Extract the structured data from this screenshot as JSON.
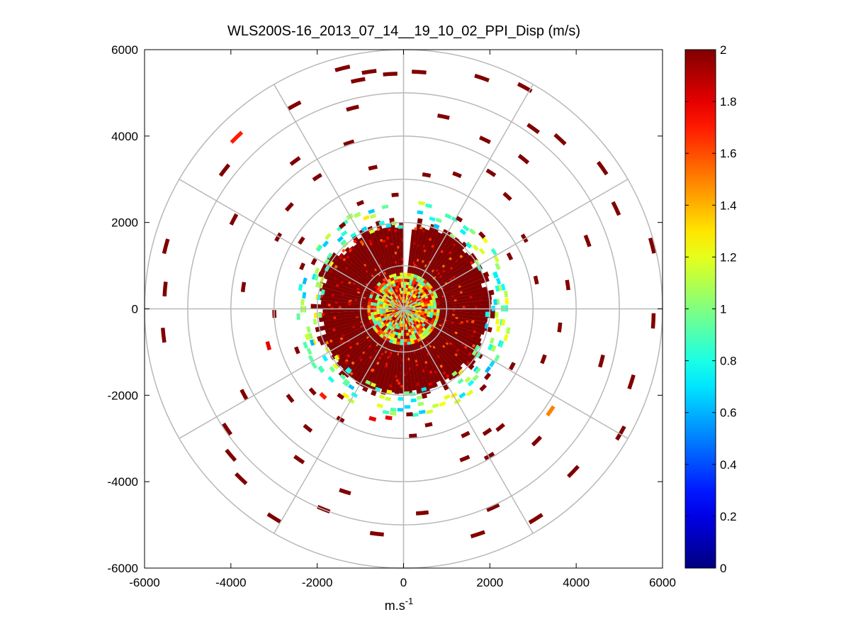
{
  "chart_data": {
    "type": "heatmap",
    "subtype": "polar-ppi",
    "title": "WLS200S-16_2013_07_14__19_10_02_PPI_Disp (m/s)",
    "xlabel": "m.s",
    "xlabel_sup": "-1",
    "ylabel": "",
    "xlim": [
      -6000,
      6000
    ],
    "ylim": [
      -6000,
      6000
    ],
    "x_ticks": [
      -6000,
      -4000,
      -2000,
      0,
      2000,
      4000,
      6000
    ],
    "y_ticks": [
      6000,
      4000,
      2000,
      0,
      -2000,
      -4000,
      -6000
    ],
    "x_tick_labels": [
      "-6000",
      "-4000",
      "-2000",
      "0",
      "2000",
      "4000",
      "6000"
    ],
    "y_tick_labels": [
      "6000",
      "4000",
      "2000",
      "0",
      "-2000",
      "-4000",
      "-6000"
    ],
    "polar_rings": [
      1000,
      2000,
      3000,
      4000,
      5000,
      6000
    ],
    "polar_spokes_deg": [
      0,
      30,
      60,
      90,
      120,
      150,
      180,
      210,
      240,
      270,
      300,
      330
    ],
    "grid": true,
    "colorbar": {
      "colormap": "jet",
      "min": 0,
      "max": 2,
      "ticks": [
        2,
        1.8,
        1.6,
        1.4,
        1.2,
        1,
        0.8,
        0.6,
        0.4,
        0.2,
        0
      ],
      "tick_labels": [
        "2",
        "1.8",
        "1.6",
        "1.4",
        "1.2",
        "1",
        "0.8",
        "0.6",
        "0.4",
        "0.2",
        "0"
      ]
    },
    "dense_core": {
      "radius_max": 2000,
      "value": 2,
      "blind_sector_deg": [
        -2,
        6
      ]
    },
    "mixed_inner_core": {
      "radius_max": 800,
      "value_range": [
        0.8,
        2
      ]
    },
    "edge_band": {
      "radius_range": [
        1850,
        2450
      ],
      "value_range": [
        0.6,
        1.3
      ]
    },
    "sparse_cells": [
      {
        "r": 5450,
        "deg": 2,
        "v": 2
      },
      {
        "r": 5400,
        "deg": -5,
        "v": 2
      },
      {
        "r": 5350,
        "deg": -13,
        "v": 2
      },
      {
        "r": 5600,
        "deg": 17,
        "v": 2
      },
      {
        "r": 5800,
        "deg": 27,
        "v": 2
      },
      {
        "r": 5100,
        "deg": 34,
        "v": 2
      },
      {
        "r": 5300,
        "deg": 41,
        "v": 2
      },
      {
        "r": 5600,
        "deg": 53,
        "v": 2
      },
      {
        "r": 5400,
        "deg": 63,
        "v": 2
      },
      {
        "r": 5900,
        "deg": 74,
        "v": 2
      },
      {
        "r": 5750,
        "deg": 91,
        "v": 2
      },
      {
        "r": 5500,
        "deg": 106,
        "v": 2
      },
      {
        "r": 5750,
        "deg": 118,
        "v": 2
      },
      {
        "r": 5400,
        "deg": 132,
        "v": 2
      },
      {
        "r": 5700,
        "deg": 146,
        "v": 2
      },
      {
        "r": 5450,
        "deg": 160,
        "v": 2
      },
      {
        "r": 5000,
        "deg": 154,
        "v": 2
      },
      {
        "r": 4700,
        "deg": 173,
        "v": 2
      },
      {
        "r": 5200,
        "deg": 185,
        "v": 2
      },
      {
        "r": 4950,
        "deg": 200,
        "v": 2
      },
      {
        "r": 5650,
        "deg": 210,
        "v": 2
      },
      {
        "r": 5400,
        "deg": 222,
        "v": 2
      },
      {
        "r": 5200,
        "deg": 228,
        "v": 2
      },
      {
        "r": 4900,
        "deg": 234,
        "v": 2
      },
      {
        "r": 5550,
        "deg": 262,
        "v": 2
      },
      {
        "r": 5500,
        "deg": 273,
        "v": 2
      },
      {
        "r": 5650,
        "deg": 283,
        "v": 2
      },
      {
        "r": 5200,
        "deg": 306,
        "v": 2
      },
      {
        "r": 5500,
        "deg": 314,
        "v": 1.7
      },
      {
        "r": 5300,
        "deg": 330,
        "v": 2
      },
      {
        "r": 5700,
        "deg": 344,
        "v": 2
      },
      {
        "r": 5500,
        "deg": 350,
        "v": 2
      },
      {
        "r": 4750,
        "deg": 344,
        "v": 2
      },
      {
        "r": 4500,
        "deg": 10,
        "v": 2
      },
      {
        "r": 4300,
        "deg": 24,
        "v": 2
      },
      {
        "r": 4400,
        "deg": 37,
        "v": 2
      },
      {
        "r": 4500,
        "deg": 68,
        "v": 2
      },
      {
        "r": 4700,
        "deg": 103,
        "v": 2
      },
      {
        "r": 4100,
        "deg": 123,
        "v": 1.5
      },
      {
        "r": 4300,
        "deg": 133,
        "v": 2
      },
      {
        "r": 3900,
        "deg": 148,
        "v": 2
      },
      {
        "r": 3700,
        "deg": 156,
        "v": 2
      },
      {
        "r": 4400,
        "deg": 196,
        "v": 2
      },
      {
        "r": 4200,
        "deg": 213,
        "v": 2
      },
      {
        "r": 4150,
        "deg": 240,
        "v": 2
      },
      {
        "r": 4400,
        "deg": 296,
        "v": 2
      },
      {
        "r": 4200,
        "deg": 322,
        "v": 2
      },
      {
        "r": 4000,
        "deg": 340,
        "v": 2
      },
      {
        "r": 3700,
        "deg": 31,
        "v": 2
      },
      {
        "r": 3500,
        "deg": 41,
        "v": 2
      },
      {
        "r": 3800,
        "deg": 80,
        "v": 2
      },
      {
        "r": 3600,
        "deg": 95,
        "v": 2
      },
      {
        "r": 3400,
        "deg": 108,
        "v": 2
      },
      {
        "r": 3500,
        "deg": 139,
        "v": 2
      },
      {
        "r": 3400,
        "deg": 144,
        "v": 2
      },
      {
        "r": 3200,
        "deg": 152,
        "v": 2
      },
      {
        "r": 3500,
        "deg": 217,
        "v": 2
      },
      {
        "r": 3300,
        "deg": 230,
        "v": 2
      },
      {
        "r": 3200,
        "deg": 253,
        "v": 1.8
      },
      {
        "r": 2950,
        "deg": 266,
        "v": 2
      },
      {
        "r": 3700,
        "deg": 276,
        "v": 2
      },
      {
        "r": 3300,
        "deg": 298,
        "v": 2
      },
      {
        "r": 3500,
        "deg": 310,
        "v": 2
      },
      {
        "r": 3600,
        "deg": 325,
        "v": 2
      },
      {
        "r": 3300,
        "deg": 346,
        "v": 2
      },
      {
        "r": 3100,
        "deg": 8,
        "v": 2
      },
      {
        "r": 3300,
        "deg": 20,
        "v": 2
      },
      {
        "r": 3200,
        "deg": 58,
        "v": 2
      },
      {
        "r": 3100,
        "deg": 76,
        "v": 2
      },
      {
        "r": 2700,
        "deg": 62,
        "v": 2
      },
      {
        "r": 2800,
        "deg": 116,
        "v": 2
      },
      {
        "r": 2700,
        "deg": 166,
        "v": 2
      },
      {
        "r": 2900,
        "deg": 174,
        "v": 2
      },
      {
        "r": 2600,
        "deg": 194,
        "v": 1.8
      },
      {
        "r": 2900,
        "deg": 208,
        "v": 2
      },
      {
        "r": 2700,
        "deg": 221,
        "v": 1.7
      },
      {
        "r": 2800,
        "deg": 226,
        "v": 2
      },
      {
        "r": 2600,
        "deg": 247,
        "v": 2
      },
      {
        "r": 2500,
        "deg": 291,
        "v": 2
      },
      {
        "r": 2800,
        "deg": 302,
        "v": 2
      },
      {
        "r": 2600,
        "deg": 336,
        "v": 2
      },
      {
        "r": 2600,
        "deg": 354,
        "v": 2
      },
      {
        "r": 2400,
        "deg": 30,
        "v": 2
      },
      {
        "r": 2450,
        "deg": 45,
        "v": 2
      },
      {
        "r": 2450,
        "deg": 127,
        "v": 2
      },
      {
        "r": 2550,
        "deg": 133,
        "v": 2
      },
      {
        "r": 2400,
        "deg": 175,
        "v": 2
      },
      {
        "r": 2500,
        "deg": 186,
        "v": 1.8
      },
      {
        "r": 2450,
        "deg": 214,
        "v": 2
      },
      {
        "r": 2300,
        "deg": 296,
        "v": 2
      },
      {
        "r": 2350,
        "deg": 322,
        "v": 2
      }
    ]
  }
}
